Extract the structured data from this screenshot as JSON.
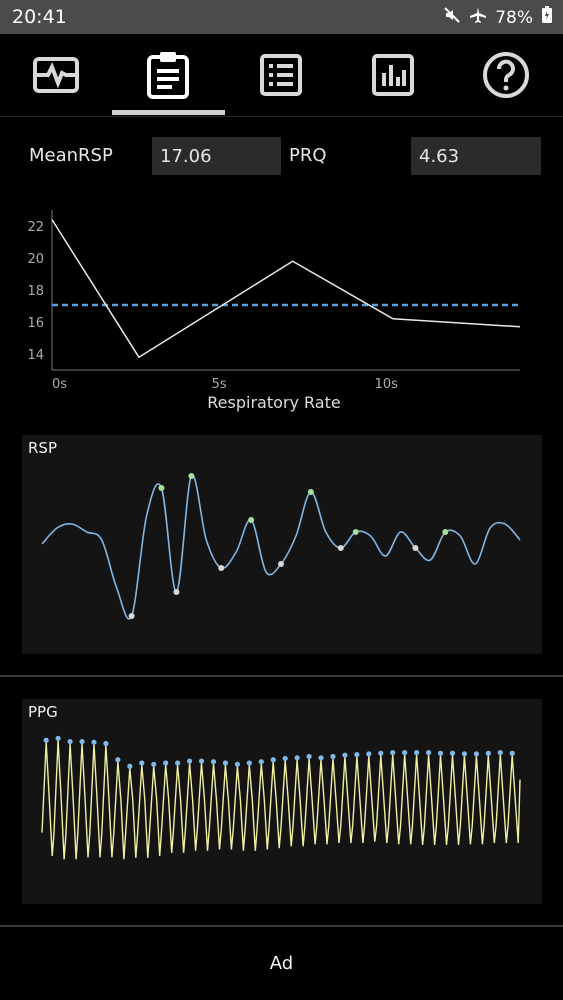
{
  "status_bar": {
    "time": "20:41",
    "battery": "78%",
    "icons": [
      "mute-icon",
      "airplane-icon",
      "battery-icon"
    ]
  },
  "tabs": [
    {
      "name": "signal",
      "icon": "waveform-icon",
      "selected": false
    },
    {
      "name": "report",
      "icon": "clipboard-icon",
      "selected": true
    },
    {
      "name": "list",
      "icon": "list-icon",
      "selected": false
    },
    {
      "name": "stats",
      "icon": "bar-chart-icon",
      "selected": false
    },
    {
      "name": "help",
      "icon": "help-icon",
      "selected": false
    }
  ],
  "metrics": {
    "mean_rsp_label": "MeanRSP",
    "mean_rsp_value": "17.06",
    "prq_label": "PRQ",
    "prq_value": "4.63"
  },
  "colors": {
    "background": "#000000",
    "rsp_line": "#7fb7e6",
    "rsp_peak_dot": "#a6e09a",
    "trough_dot": "#d8d8d8",
    "ppg_line": "#f0efa0",
    "ppg_dot": "#7fb7e6",
    "mean_line": "#5aa0e0"
  },
  "chart_data": [
    {
      "type": "line",
      "title": "",
      "xlabel": "Respiratory Rate",
      "ylabel": "",
      "x": [
        0,
        2.6,
        7.2,
        10.2,
        14
      ],
      "y": [
        22.4,
        13.8,
        19.8,
        16.2,
        15.7
      ],
      "xlim": [
        0,
        14
      ],
      "ylim": [
        13,
        23
      ],
      "x_ticks": [
        "0s",
        "5s",
        "10s"
      ],
      "x_tick_values": [
        0,
        5,
        10
      ],
      "y_ticks": [
        "14",
        "16",
        "18",
        "20",
        "22"
      ],
      "y_tick_values": [
        14,
        16,
        18,
        20,
        22
      ],
      "mean_line": 17.06,
      "grid": false
    },
    {
      "type": "line",
      "title": "RSP",
      "xlabel": "",
      "ylabel": "",
      "x": [
        0,
        1,
        2,
        3,
        4,
        5,
        6,
        7,
        8,
        9,
        10,
        11,
        12,
        13,
        14,
        15,
        16,
        17,
        18,
        19,
        20,
        21,
        22,
        23,
        24,
        25,
        26,
        27,
        28,
        29,
        30,
        31,
        32
      ],
      "y": [
        0.05,
        0.25,
        0.3,
        0.2,
        0.1,
        -0.5,
        -0.85,
        0.4,
        0.75,
        -0.55,
        0.9,
        0.1,
        -0.25,
        -0.05,
        0.35,
        -0.3,
        -0.2,
        0.15,
        0.7,
        0.2,
        0.0,
        0.2,
        0.15,
        -0.1,
        0.2,
        0.0,
        -0.15,
        0.2,
        0.15,
        -0.2,
        0.25,
        0.3,
        0.1
      ],
      "peaks": [
        8,
        10,
        14,
        18,
        21,
        27
      ],
      "troughs": [
        6,
        9,
        12,
        16,
        20,
        25
      ],
      "grid": false
    },
    {
      "type": "line",
      "title": "PPG",
      "xlabel": "",
      "ylabel": "",
      "beats": 40,
      "peak_values": [
        0.95,
        0.98,
        0.93,
        0.93,
        0.92,
        0.9,
        0.65,
        0.55,
        0.6,
        0.58,
        0.6,
        0.6,
        0.63,
        0.63,
        0.62,
        0.6,
        0.58,
        0.6,
        0.62,
        0.65,
        0.67,
        0.68,
        0.7,
        0.68,
        0.7,
        0.72,
        0.73,
        0.74,
        0.75,
        0.76,
        0.76,
        0.76,
        0.76,
        0.75,
        0.75,
        0.74,
        0.74,
        0.75,
        0.76,
        0.75
      ],
      "trough_values": [
        -0.8,
        -0.85,
        -0.85,
        -0.82,
        -0.82,
        -0.82,
        -0.85,
        -0.83,
        -0.83,
        -0.8,
        -0.75,
        -0.75,
        -0.72,
        -0.72,
        -0.7,
        -0.7,
        -0.72,
        -0.72,
        -0.7,
        -0.68,
        -0.65,
        -0.65,
        -0.62,
        -0.62,
        -0.6,
        -0.6,
        -0.6,
        -0.58,
        -0.6,
        -0.62,
        -0.62,
        -0.63,
        -0.63,
        -0.63,
        -0.63,
        -0.62,
        -0.62,
        -0.6,
        -0.6,
        -0.6
      ],
      "grid": false
    }
  ],
  "ad": {
    "label": "Ad"
  }
}
